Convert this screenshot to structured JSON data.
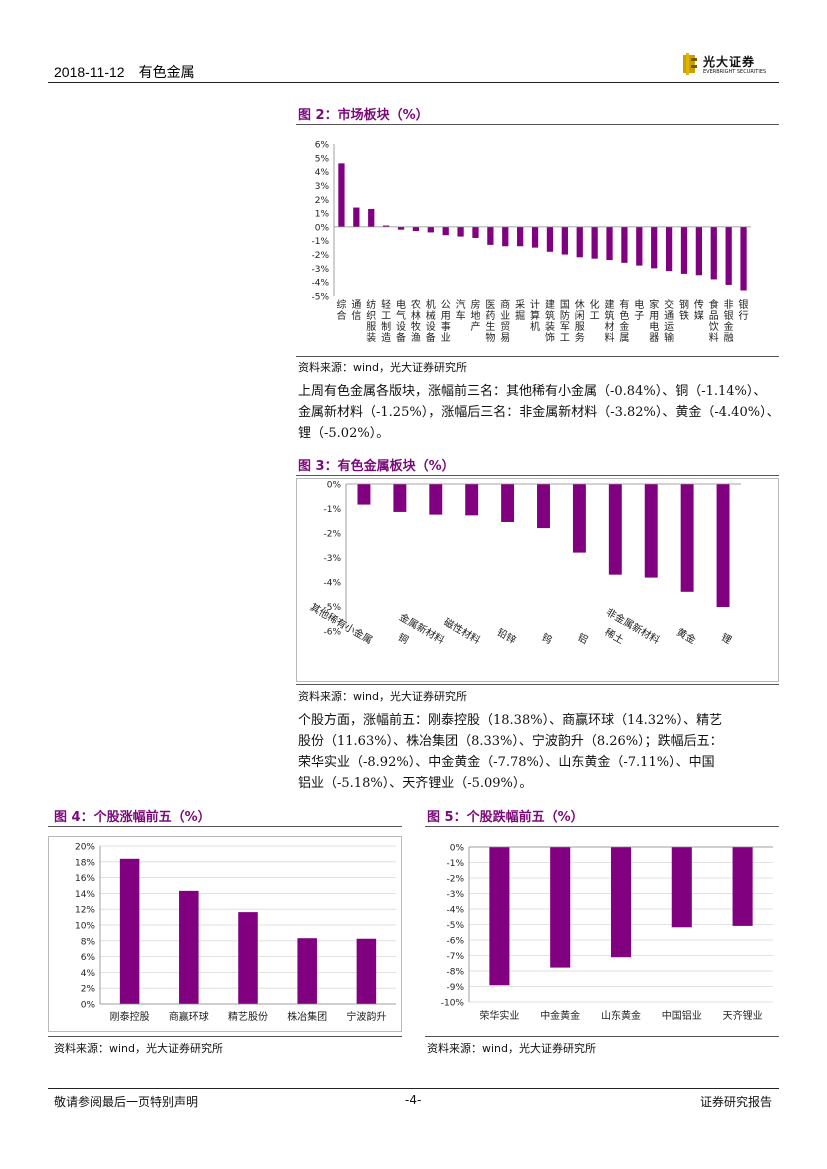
{
  "header": {
    "date": "2018-11-12",
    "category": "有色金属",
    "logo_name": "光大证券",
    "logo_sub": "EVERBRIGHT SECURITIES"
  },
  "colors": {
    "bar": "#800080",
    "title": "#7a0a7a"
  },
  "fig2": {
    "title": "图 2：市场板块（%）",
    "source": "资料来源：wind，光大证券研究所",
    "chart_data": {
      "type": "bar",
      "categories": [
        "综合",
        "通信",
        "纺织服装",
        "轻工制造",
        "电气设备",
        "农林牧渔",
        "机械设备",
        "公用事业",
        "汽车",
        "房地产",
        "医药生物",
        "商业贸易",
        "采掘",
        "计算机",
        "建筑装饰",
        "国防军工",
        "休闲服务",
        "化工",
        "建筑材料",
        "有色金属",
        "电子",
        "家用电器",
        "交通运输",
        "钢铁",
        "传媒",
        "食品饮料",
        "非银金融",
        "银行"
      ],
      "values": [
        4.6,
        1.4,
        1.3,
        0.1,
        -0.2,
        -0.3,
        -0.4,
        -0.6,
        -0.7,
        -0.8,
        -1.3,
        -1.4,
        -1.4,
        -1.5,
        -1.8,
        -2.0,
        -2.2,
        -2.3,
        -2.4,
        -2.6,
        -2.8,
        -3.0,
        -3.2,
        -3.4,
        -3.5,
        -3.8,
        -4.2,
        -4.6
      ],
      "ylim": [
        -5,
        6
      ],
      "yticks": [
        "6%",
        "5%",
        "4%",
        "3%",
        "2%",
        "1%",
        "0%",
        "-1%",
        "-2%",
        "-3%",
        "-4%",
        "-5%"
      ]
    }
  },
  "para1": {
    "lines": [
      "上周有色金属各版块，涨幅前三名：其他稀有小金属（-0.84%）、铜（-1.14%）、",
      "金属新材料（-1.25%），涨幅后三名：非金属新材料（-3.82%）、黄金（-4.40%）、",
      "锂（-5.02%）。"
    ]
  },
  "fig3": {
    "title": "图 3：有色金属板块（%）",
    "source": "资料来源：wind，光大证券研究所",
    "chart_data": {
      "type": "bar",
      "categories": [
        "其他稀有小金属",
        "铜",
        "金属新材料",
        "磁性材料",
        "铅锌",
        "钨",
        "铝",
        "稀土",
        "非金属新材料",
        "黄金",
        "锂"
      ],
      "values": [
        -0.84,
        -1.14,
        -1.25,
        -1.28,
        -1.55,
        -1.8,
        -2.8,
        -3.7,
        -3.82,
        -4.4,
        -5.02
      ],
      "ylim": [
        -6,
        0
      ],
      "yticks": [
        "0%",
        "-1%",
        "-2%",
        "-3%",
        "-4%",
        "-5%",
        "-6%"
      ]
    }
  },
  "para2": {
    "lines": [
      "个股方面，涨幅前五：刚泰控股（18.38%）、商赢环球（14.32%）、精艺",
      "股份（11.63%）、株冶集团（8.33%）、宁波韵升（8.26%）；跌幅后五：",
      "荣华实业（-8.92%）、中金黄金（-7.78%）、山东黄金（-7.11%）、中国",
      "铝业（-5.18%）、天齐锂业（-5.09%）。"
    ]
  },
  "fig4": {
    "title": "图 4：个股涨幅前五（%）",
    "source": "资料来源：wind，光大证券研究所",
    "chart_data": {
      "type": "bar",
      "categories": [
        "刚泰控股",
        "商赢环球",
        "精艺股份",
        "株冶集团",
        "宁波韵升"
      ],
      "values": [
        18.38,
        14.32,
        11.63,
        8.33,
        8.26
      ],
      "ylim": [
        0,
        20
      ],
      "yticks": [
        "20%",
        "18%",
        "16%",
        "14%",
        "12%",
        "10%",
        "8%",
        "6%",
        "4%",
        "2%",
        "0%"
      ]
    }
  },
  "fig5": {
    "title": "图 5：个股跌幅前五（%）",
    "source": "资料来源：wind，光大证券研究所",
    "chart_data": {
      "type": "bar",
      "categories": [
        "荣华实业",
        "中金黄金",
        "山东黄金",
        "中国铝业",
        "天齐锂业"
      ],
      "values": [
        -8.92,
        -7.78,
        -7.11,
        -5.18,
        -5.09
      ],
      "ylim": [
        -10,
        0
      ],
      "yticks": [
        "0%",
        "-1%",
        "-2%",
        "-3%",
        "-4%",
        "-5%",
        "-6%",
        "-7%",
        "-8%",
        "-9%",
        "-10%"
      ]
    }
  },
  "footer": {
    "left": "敬请参阅最后一页特别声明",
    "center": "-4-",
    "right": "证券研究报告"
  }
}
